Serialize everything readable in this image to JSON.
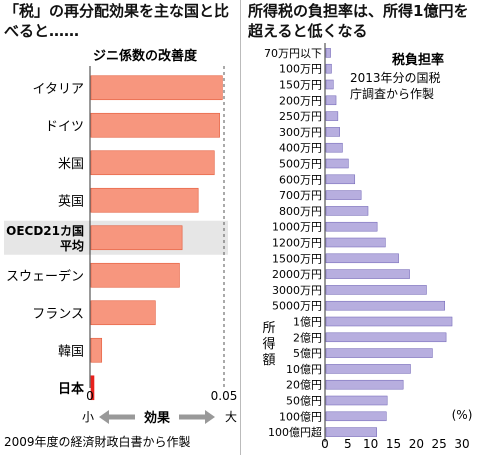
{
  "chart_data": [
    {
      "type": "bar",
      "title": "「税」の再分配効果を主な国と比べると……",
      "subtitle": "ジニ係数の改善度",
      "source": "2009年度の経済財政白書から作製",
      "categories": [
        "イタリア",
        "ドイツ",
        "米国",
        "英国",
        "OECD21カ国平均",
        "スウェーデン",
        "フランス",
        "韓国",
        "日本"
      ],
      "values": [
        0.049,
        0.048,
        0.046,
        0.04,
        0.034,
        0.033,
        0.024,
        0.004,
        0.001
      ],
      "xlim": [
        0,
        0.05
      ],
      "xticks": [
        "0",
        "0.05"
      ],
      "axis_caption": {
        "small": "小",
        "middle": "効果",
        "large": "大"
      },
      "highlight": "OECD21カ国平均",
      "colors": {
        "bar": "#f7967e",
        "bar_border": "#e35a3a",
        "japan": "#e8211d",
        "highlight_band": "#e6e6e6"
      }
    },
    {
      "type": "bar",
      "title": "所得税の負担率は、所得1億円を超えると低くなる",
      "legend_title": "税負担率",
      "note": "2013年分の国税庁調査から作製",
      "ylabel": "所得額",
      "xlabel_unit": "(%)",
      "categories": [
        "70万円以下",
        "100万円",
        "150万円",
        "200万円",
        "250万円",
        "300万円",
        "400万円",
        "500万円",
        "600万円",
        "700万円",
        "800万円",
        "1000万円",
        "1200万円",
        "1500万円",
        "2000万円",
        "3000万円",
        "5000万円",
        "1億円",
        "2億円",
        "5億円",
        "10億円",
        "20億円",
        "50億円",
        "100億円",
        "100億円超"
      ],
      "values": [
        1.0,
        1.2,
        1.6,
        2.2,
        2.6,
        3.0,
        3.6,
        4.9,
        6.3,
        7.7,
        9.2,
        11.2,
        13.0,
        15.9,
        18.3,
        22.0,
        26.0,
        27.6,
        26.3,
        23.3,
        18.5,
        16.9,
        13.4,
        13.2,
        11.1
      ],
      "xlim": [
        0,
        30
      ],
      "xticks": [
        "0",
        "5",
        "10",
        "15",
        "20",
        "25",
        "30"
      ],
      "colors": {
        "bar": "#b7aedf",
        "bar_border": "#6b5fb3"
      }
    }
  ]
}
